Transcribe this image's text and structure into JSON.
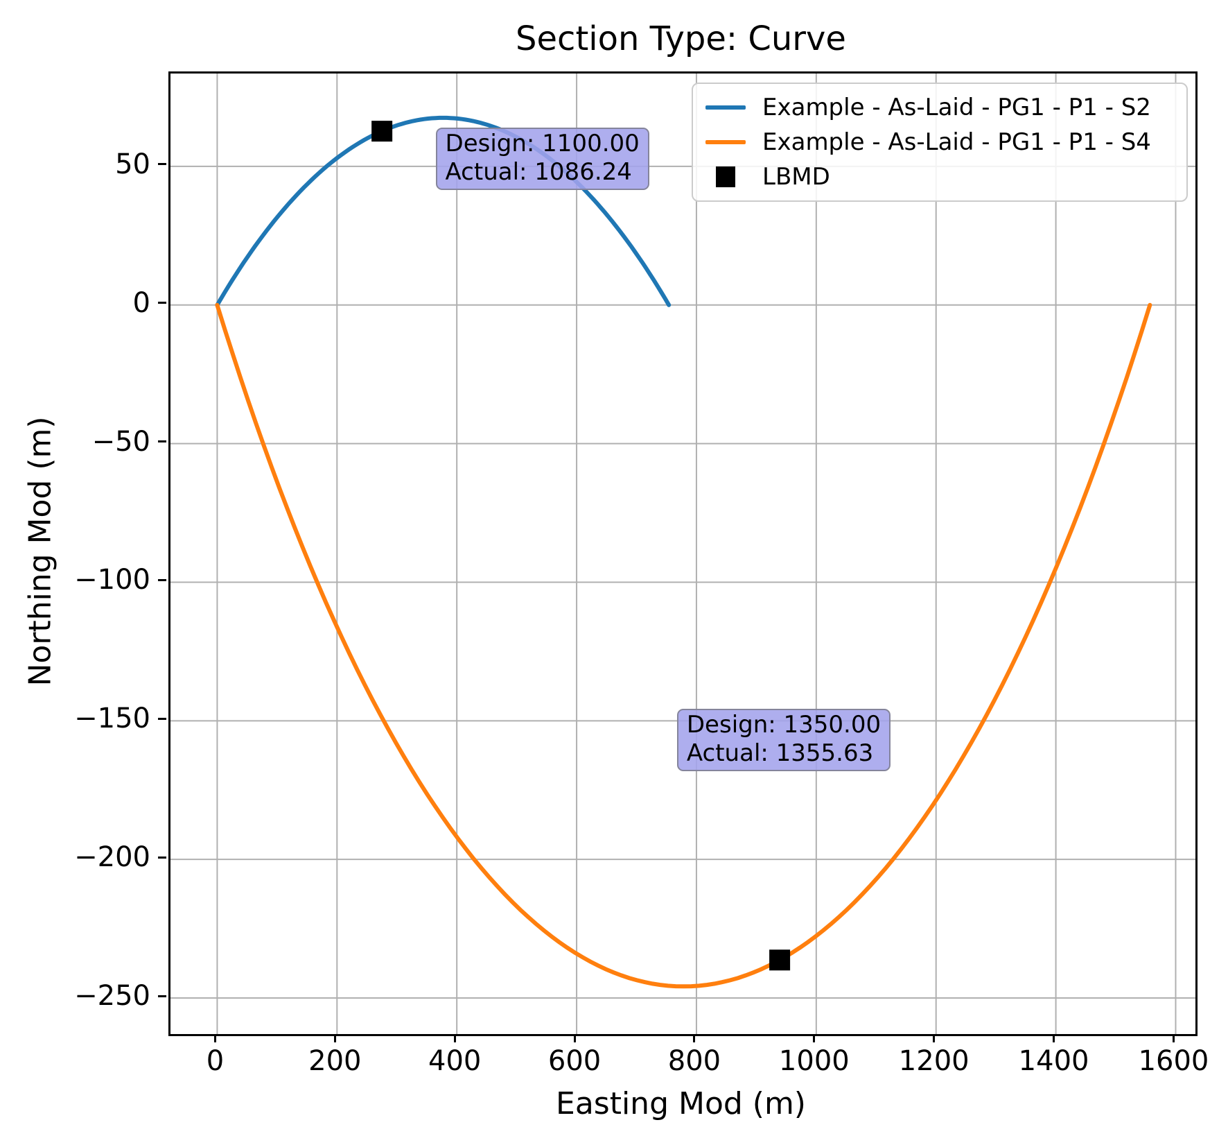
{
  "chart_data": {
    "type": "line",
    "title": "Section Type: Curve",
    "xlabel": "Easting Mod (m)",
    "ylabel": "Northing Mod (m)",
    "xlim": [
      -78,
      1633
    ],
    "ylim": [
      -263,
      83.5
    ],
    "xticks": [
      0,
      200,
      400,
      600,
      800,
      1000,
      1200,
      1400,
      1600
    ],
    "xtick_labels": [
      "0",
      "200",
      "400",
      "600",
      "800",
      "1000",
      "1200",
      "1400",
      "1600"
    ],
    "yticks": [
      50,
      0,
      -50,
      -100,
      -150,
      -200,
      -250
    ],
    "ytick_labels": [
      "50",
      "0",
      "−50",
      "−100",
      "−150",
      "−200",
      "−250"
    ],
    "grid": true,
    "grid_color": "#b0b0b0",
    "legend_position": "upper right",
    "series": [
      {
        "name": "Example - As-Laid - PG1 - P1 - S2",
        "color": "#1f77b4",
        "shape": "arc",
        "start": [
          0,
          0
        ],
        "end": [
          754,
          0
        ],
        "bulge": "up",
        "radius_actual": 1086.24,
        "radius_design": 1100.0,
        "apex": [
          377,
          67.5
        ]
      },
      {
        "name": "Example - As-Laid - PG1 - P1 - S4",
        "color": "#ff7f0e",
        "shape": "arc",
        "start": [
          0,
          0
        ],
        "end": [
          1557,
          0
        ],
        "bulge": "down",
        "radius_actual": 1355.63,
        "radius_design": 1350.0,
        "apex": [
          778.5,
          -245.8
        ]
      }
    ],
    "markers": {
      "name": "LBMD",
      "color": "#000000",
      "marker": "square",
      "points": [
        [
          275,
          62.7
        ],
        [
          939,
          -236.3
        ]
      ]
    },
    "annotations": [
      {
        "lines": [
          "Design: 1100.00",
          "Actual: 1086.24"
        ],
        "anchor_data": [
          368,
          63.3
        ],
        "fill": "rgba(163,163,236,0.88)",
        "edge": "#84849b"
      },
      {
        "lines": [
          "Design: 1350.00",
          "Actual: 1355.63"
        ],
        "anchor_data": [
          771,
          -146.3
        ],
        "fill": "rgba(163,163,236,0.88)",
        "edge": "#84849b"
      }
    ],
    "legend_entries": [
      {
        "label": "Example - As-Laid - PG1 - P1 - S2",
        "color": "#1f77b4",
        "sample": "line"
      },
      {
        "label": "Example - As-Laid - PG1 - P1 - S4",
        "color": "#ff7f0e",
        "sample": "line"
      },
      {
        "label": "LBMD",
        "color": "#000000",
        "sample": "square"
      }
    ]
  }
}
